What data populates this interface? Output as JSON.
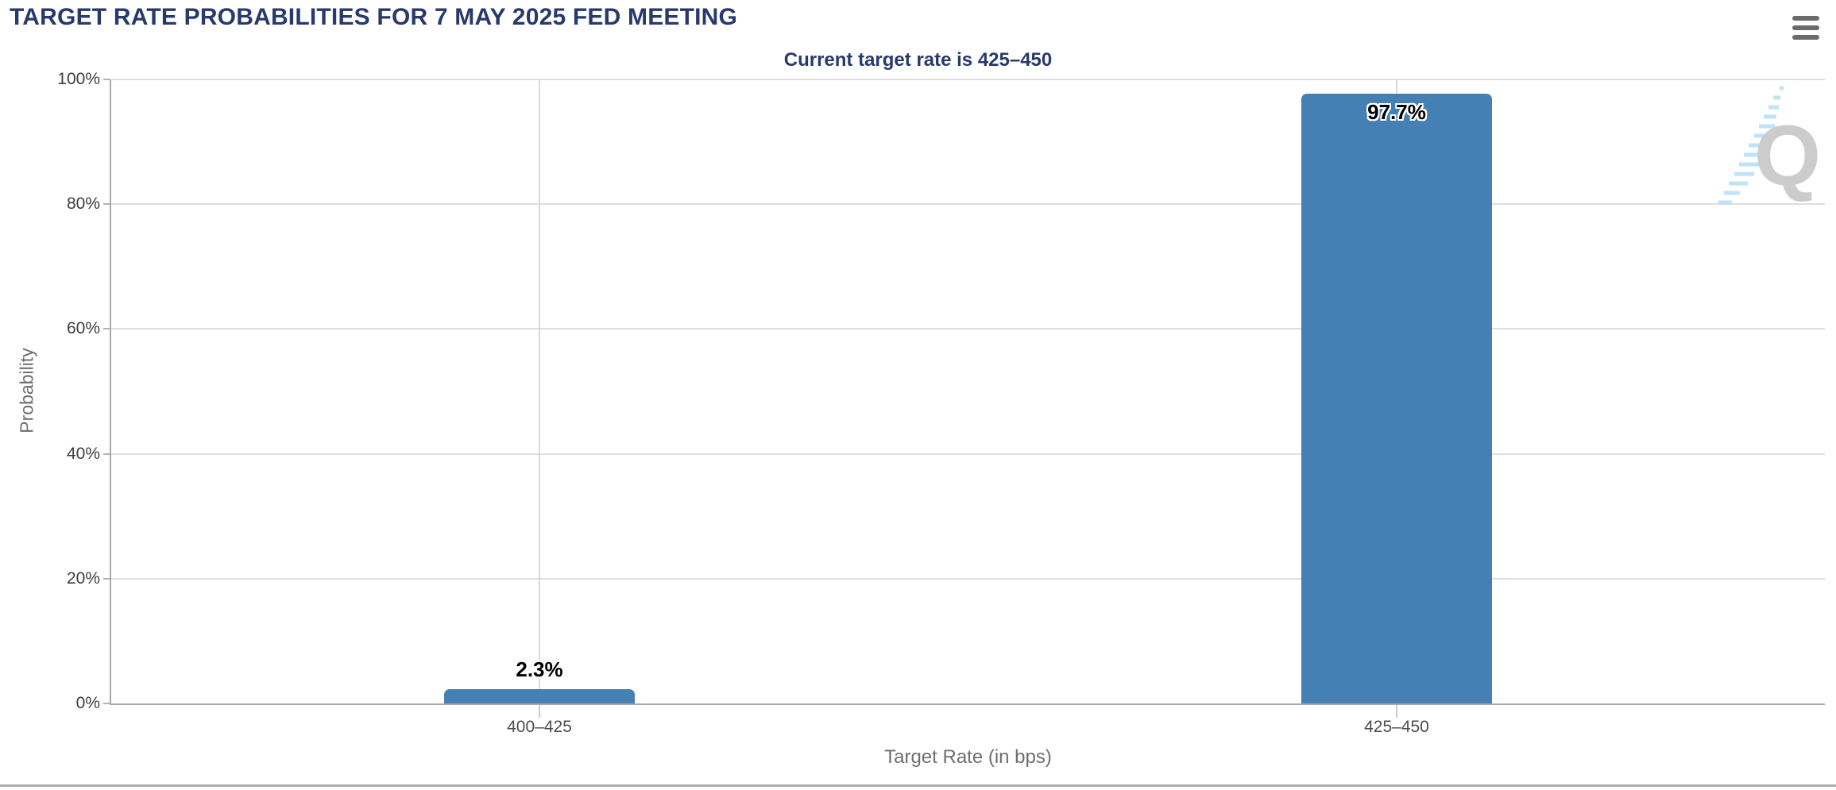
{
  "header": {
    "title": "TARGET RATE PROBABILITIES FOR 7 MAY 2025 FED MEETING",
    "menu_icon": "hamburger-menu"
  },
  "watermark": {
    "letter": "Q"
  },
  "colors": {
    "title_navy": "#283a6b",
    "bar_blue": "#4580b4",
    "gridline_gray": "#dedede",
    "axis_gray": "#a9a9a9",
    "watermark_gray": "#cccccc",
    "watermark_blue": "#bfe3f7"
  },
  "chart_data": {
    "type": "bar",
    "title": "TARGET RATE PROBABILITIES FOR 7 MAY 2025 FED MEETING",
    "subtitle": "Current target rate is 425–450",
    "categories": [
      "400–425",
      "425–450"
    ],
    "values": [
      2.3,
      97.7
    ],
    "value_labels": [
      "2.3%",
      "97.7%"
    ],
    "xlabel": "Target Rate (in bps)",
    "ylabel": "Probability",
    "ylim": [
      0,
      100
    ],
    "yticks": [
      {
        "value": 0,
        "label": "0%"
      },
      {
        "value": 20,
        "label": "20%"
      },
      {
        "value": 40,
        "label": "40%"
      },
      {
        "value": 60,
        "label": "60%"
      },
      {
        "value": 80,
        "label": "80%"
      },
      {
        "value": 100,
        "label": "100%"
      }
    ],
    "grid": true,
    "legend": "none",
    "bar_color": "#4580b4"
  }
}
